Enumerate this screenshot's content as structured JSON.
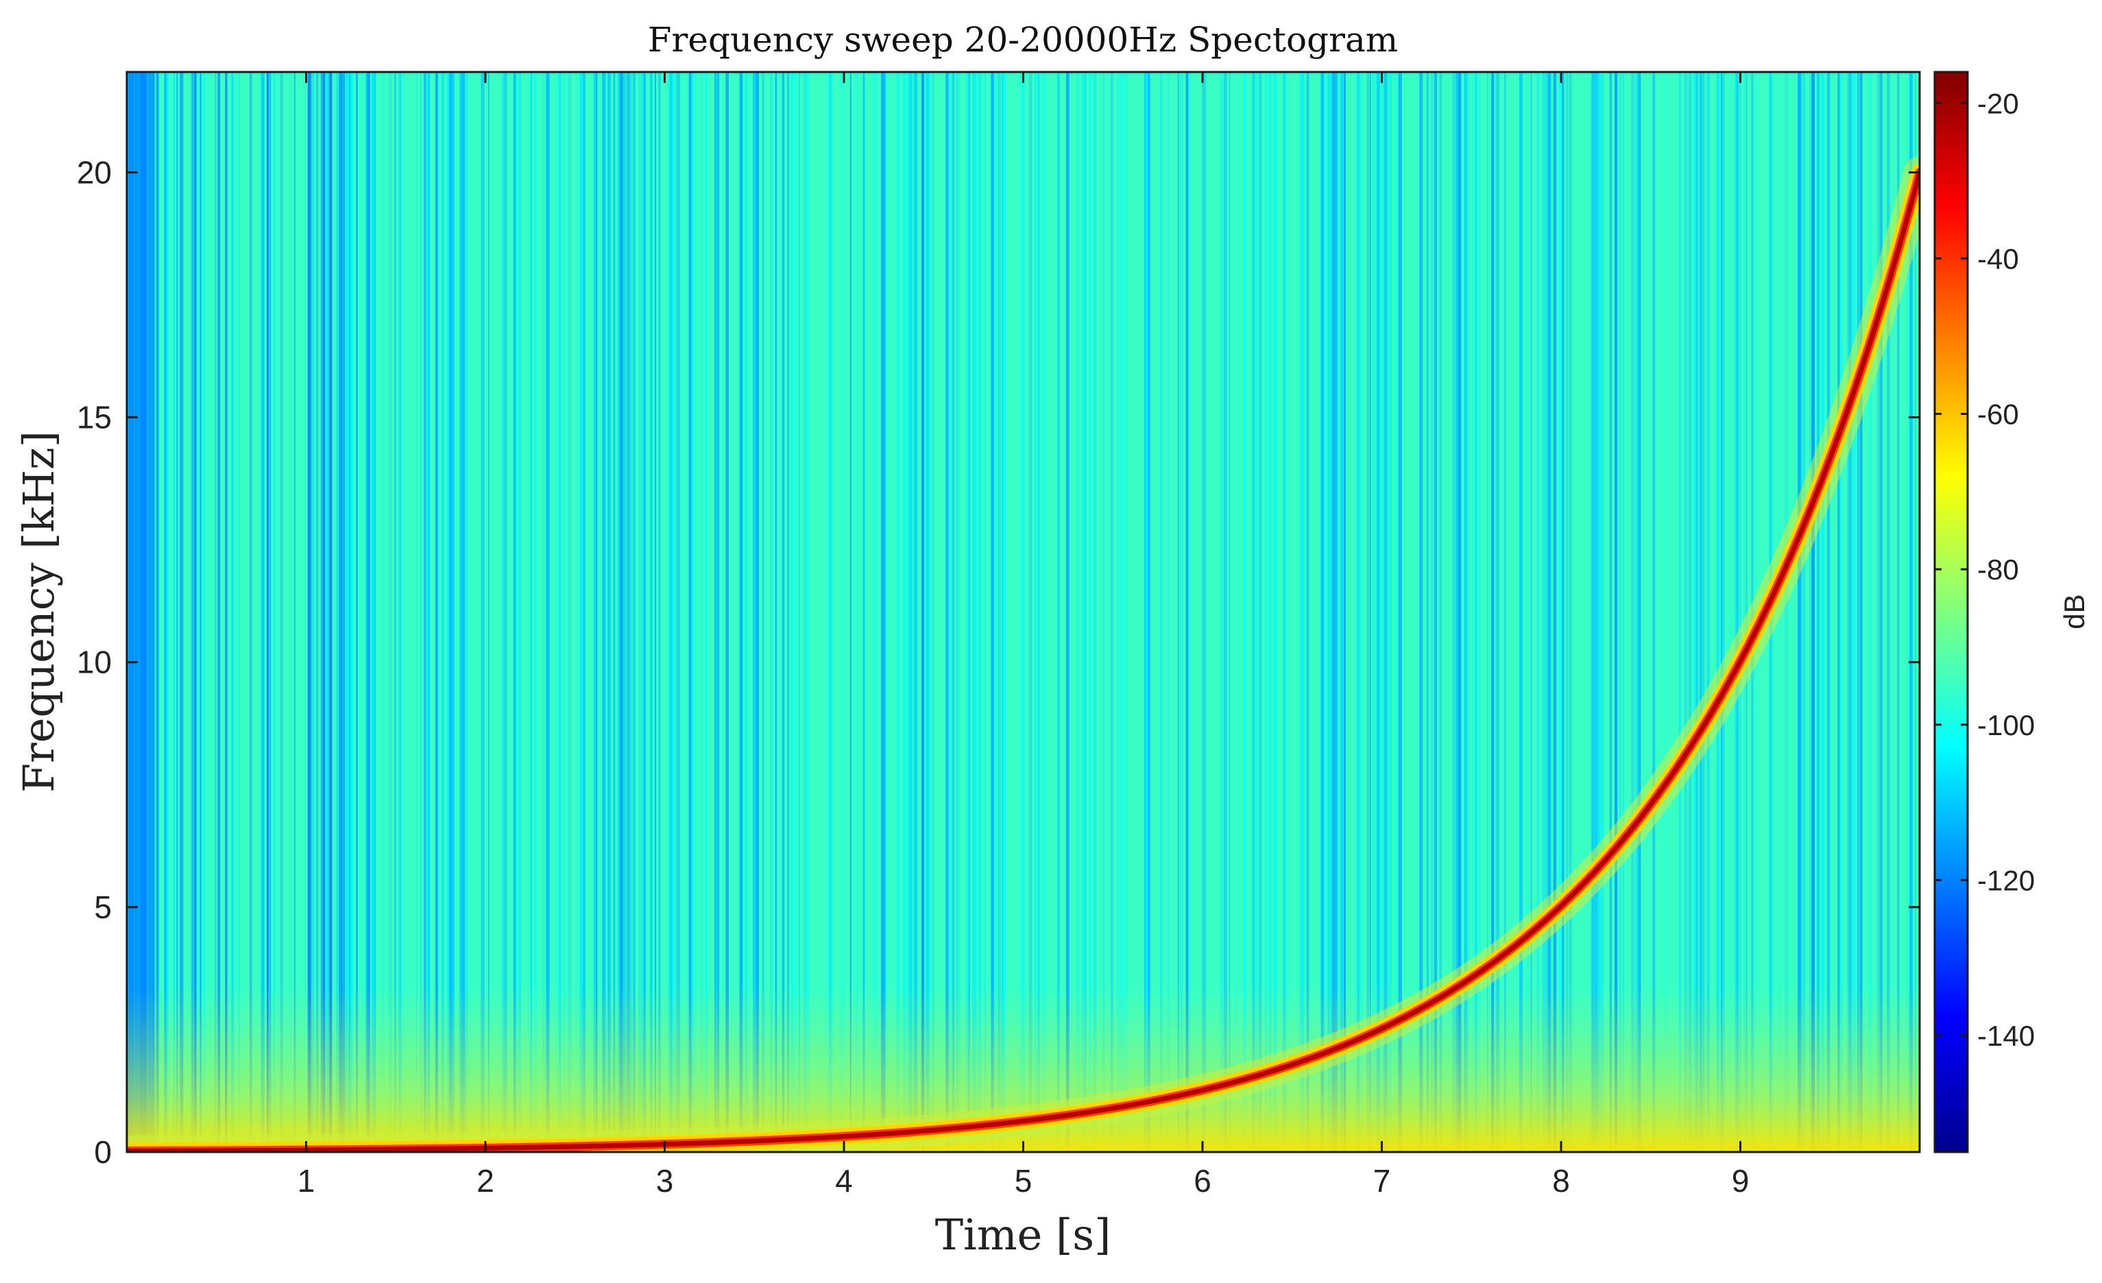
{
  "chart_data": {
    "type": "heatmap",
    "title": "Frequency sweep 20-20000Hz Spectogram",
    "xlabel": "Time [s]",
    "ylabel": "Frequency [kHz]",
    "xlim": [
      0,
      10
    ],
    "ylim": [
      0,
      22.05
    ],
    "xticks": [
      1,
      2,
      3,
      4,
      5,
      6,
      7,
      8,
      9
    ],
    "yticks": [
      0,
      5,
      10,
      15,
      20
    ],
    "colorbar": {
      "label": "dB",
      "range": [
        -155,
        -16
      ],
      "ticks": [
        -20,
        -40,
        -60,
        -80,
        -100,
        -120,
        -140
      ],
      "colormap": "jet"
    },
    "sweep": {
      "type": "exponential",
      "f_start_hz": 20,
      "f_end_hz": 20000,
      "duration_s": 10,
      "peak_db": -16
    },
    "colors": {
      "background_db": -95,
      "low_frequency_glow_db": -70,
      "sweep_line": "#b40000",
      "sweep_halo": "#ffd500"
    }
  }
}
